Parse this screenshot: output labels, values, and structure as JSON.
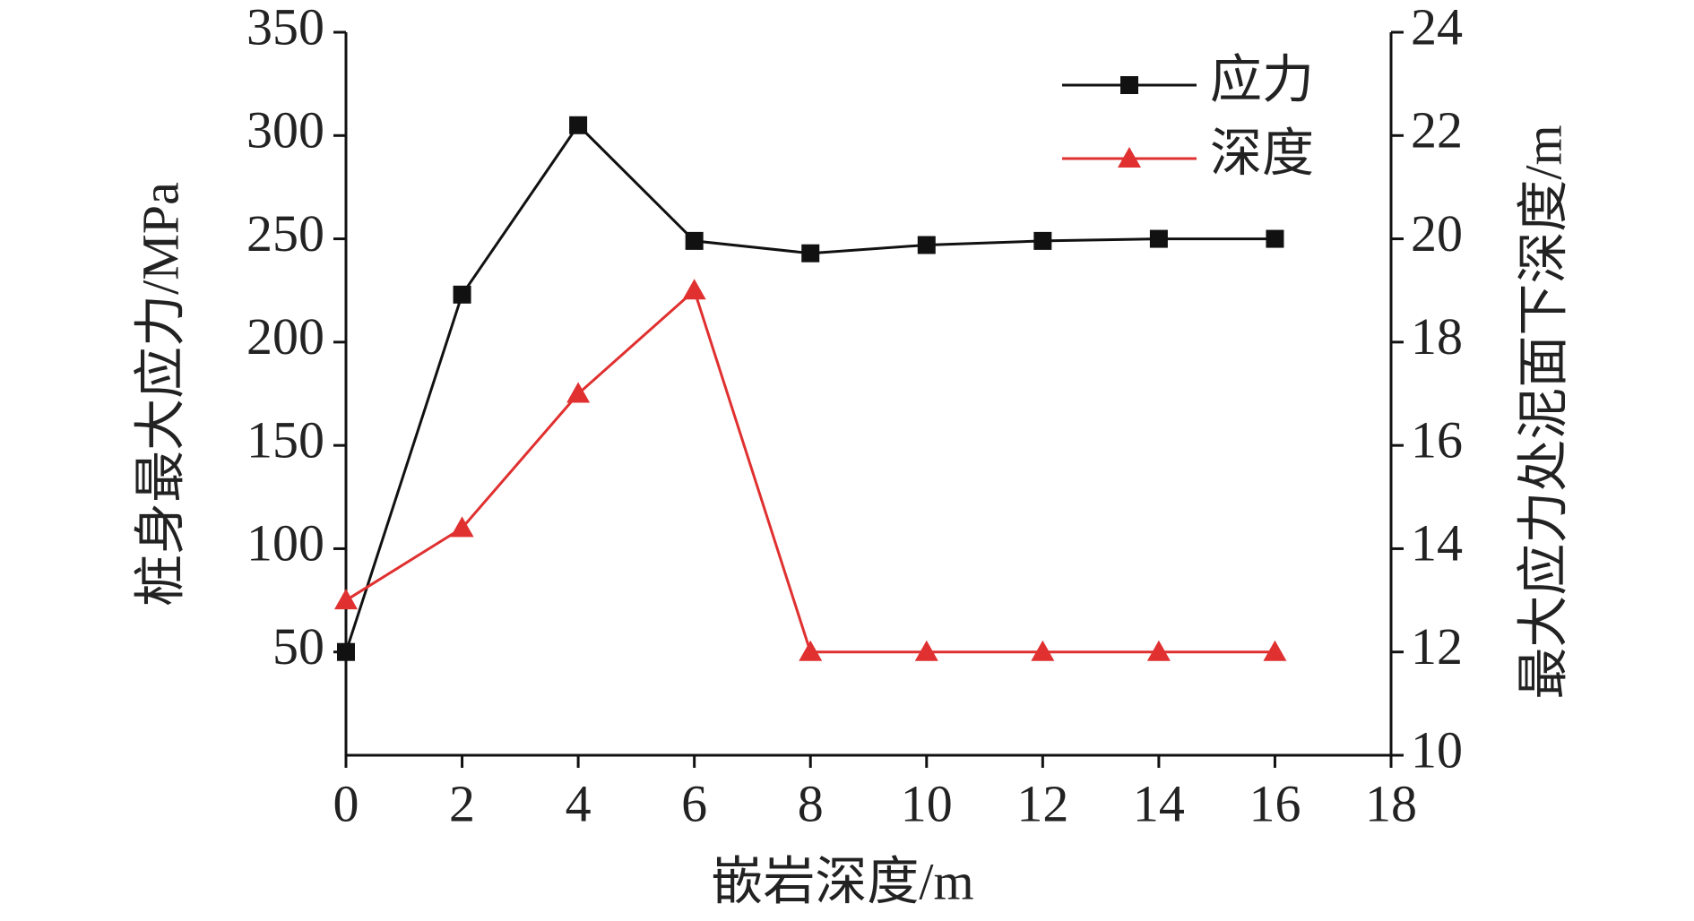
{
  "chart_data": {
    "type": "line",
    "x_label": "嵌岩深度/m",
    "y_label": "桩身最大应力/MPa",
    "y2_label": "最大应力处泥面下深度/m",
    "x": [
      0,
      2,
      4,
      6,
      8,
      10,
      12,
      14,
      16
    ],
    "series": [
      {
        "name": "应力",
        "color": "#111111",
        "marker": "square",
        "values": [
          50,
          223,
          305,
          249,
          243,
          247,
          249,
          250,
          250
        ]
      },
      {
        "name": "深度",
        "color": "#e03030",
        "marker": "triangle",
        "axis": "y2",
        "values": [
          13,
          14.4,
          17,
          19,
          12,
          12,
          12,
          12,
          12
        ]
      }
    ],
    "xlim": [
      0,
      18
    ],
    "xticks": [
      0,
      2,
      4,
      6,
      8,
      10,
      12,
      14,
      16,
      18
    ],
    "ylim": [
      0,
      350
    ],
    "yticks": [
      50,
      100,
      150,
      200,
      250,
      300,
      350
    ],
    "y2lim": [
      10,
      24
    ],
    "y2ticks": [
      10,
      12,
      14,
      16,
      18,
      20,
      22,
      24
    ],
    "legend": "upper right"
  }
}
